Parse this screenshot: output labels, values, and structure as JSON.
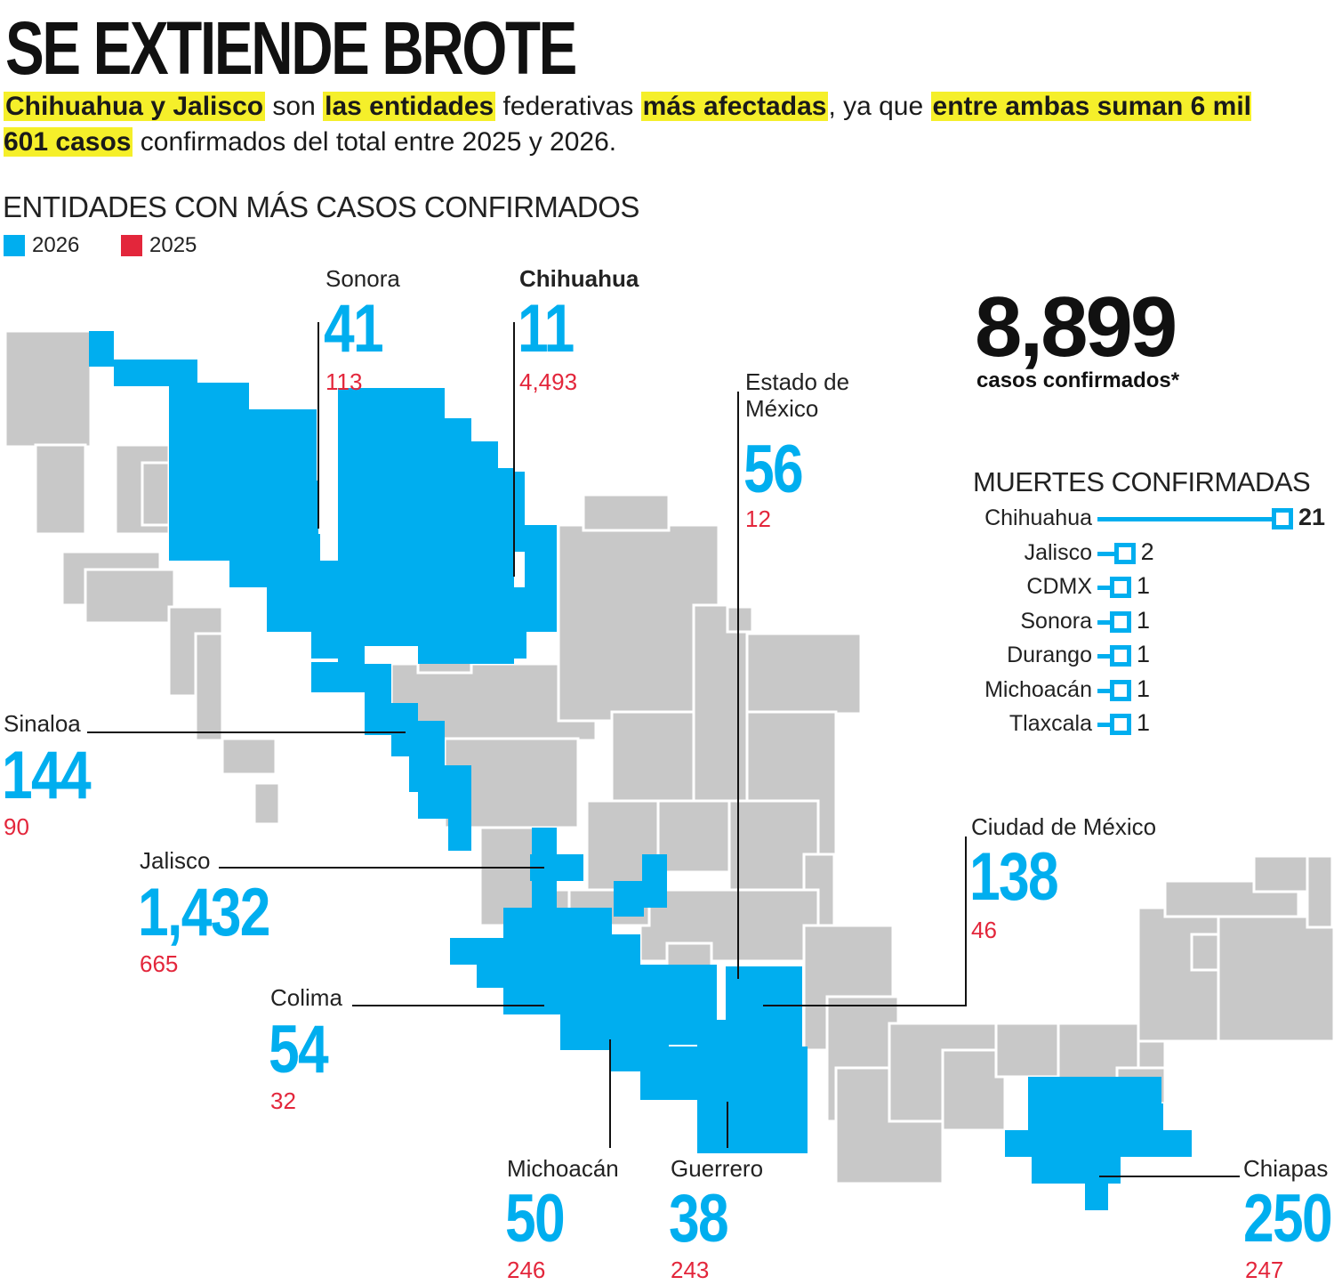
{
  "title": "SE EXTIENDE BROTE",
  "subtitle": {
    "segments": [
      {
        "text": "Chihuahua y Jalisco",
        "hl": true
      },
      {
        "text": " son ",
        "hl": false
      },
      {
        "text": "las entidades",
        "hl": true
      },
      {
        "text": " federativas ",
        "hl": false
      },
      {
        "text": "más afectadas",
        "hl": true
      },
      {
        "text": ", ya que ",
        "hl": false
      },
      {
        "text": "entre ambas suman 6 mil 601 casos",
        "hl": true
      },
      {
        "text": " confirmados del total entre 2025 y 2026.",
        "hl": false
      }
    ]
  },
  "section_title": "ENTIDADES CON MÁS CASOS CONFIRMADOS",
  "legend": [
    {
      "label": "2026",
      "color": "#00aeef"
    },
    {
      "label": "2025",
      "color": "#e3263b"
    }
  ],
  "colors": {
    "highlight": "#00aeef",
    "other": "#c8c8c8",
    "red": "#e3263b",
    "marker": "#f5ef2a"
  },
  "states": {
    "sonora": {
      "name": "Sonora",
      "v2026": "41",
      "v2025": "113"
    },
    "chihuahua": {
      "name": "Chihuahua",
      "v2026": "11",
      "v2025": "4,493"
    },
    "edomex": {
      "name": "Estado de México",
      "v2026": "56",
      "v2025": "12"
    },
    "sinaloa": {
      "name": "Sinaloa",
      "v2026": "144",
      "v2025": "90"
    },
    "jalisco": {
      "name": "Jalisco",
      "v2026": "1,432",
      "v2025": "665"
    },
    "colima": {
      "name": "Colima",
      "v2026": "54",
      "v2025": "32"
    },
    "cdmx": {
      "name": "Ciudad de México",
      "v2026": "138",
      "v2025": "46"
    },
    "michoacan": {
      "name": "Michoacán",
      "v2026": "50",
      "v2025": "246"
    },
    "guerrero": {
      "name": "Guerrero",
      "v2026": "38",
      "v2025": "243"
    },
    "chiapas": {
      "name": "Chiapas",
      "v2026": "250",
      "v2025": "247"
    }
  },
  "total": {
    "value": "8,899",
    "label": "casos confirmados*"
  },
  "deaths": {
    "title": "MUERTES CONFIRMADAS",
    "max": 21,
    "items": [
      {
        "name": "Chihuahua",
        "value": 21
      },
      {
        "name": "Jalisco",
        "value": 2
      },
      {
        "name": "CDMX",
        "value": 1
      },
      {
        "name": "Sonora",
        "value": 1
      },
      {
        "name": "Durango",
        "value": 1
      },
      {
        "name": "Michoacán",
        "value": 1
      },
      {
        "name": "Tlaxcala",
        "value": 1
      }
    ]
  }
}
